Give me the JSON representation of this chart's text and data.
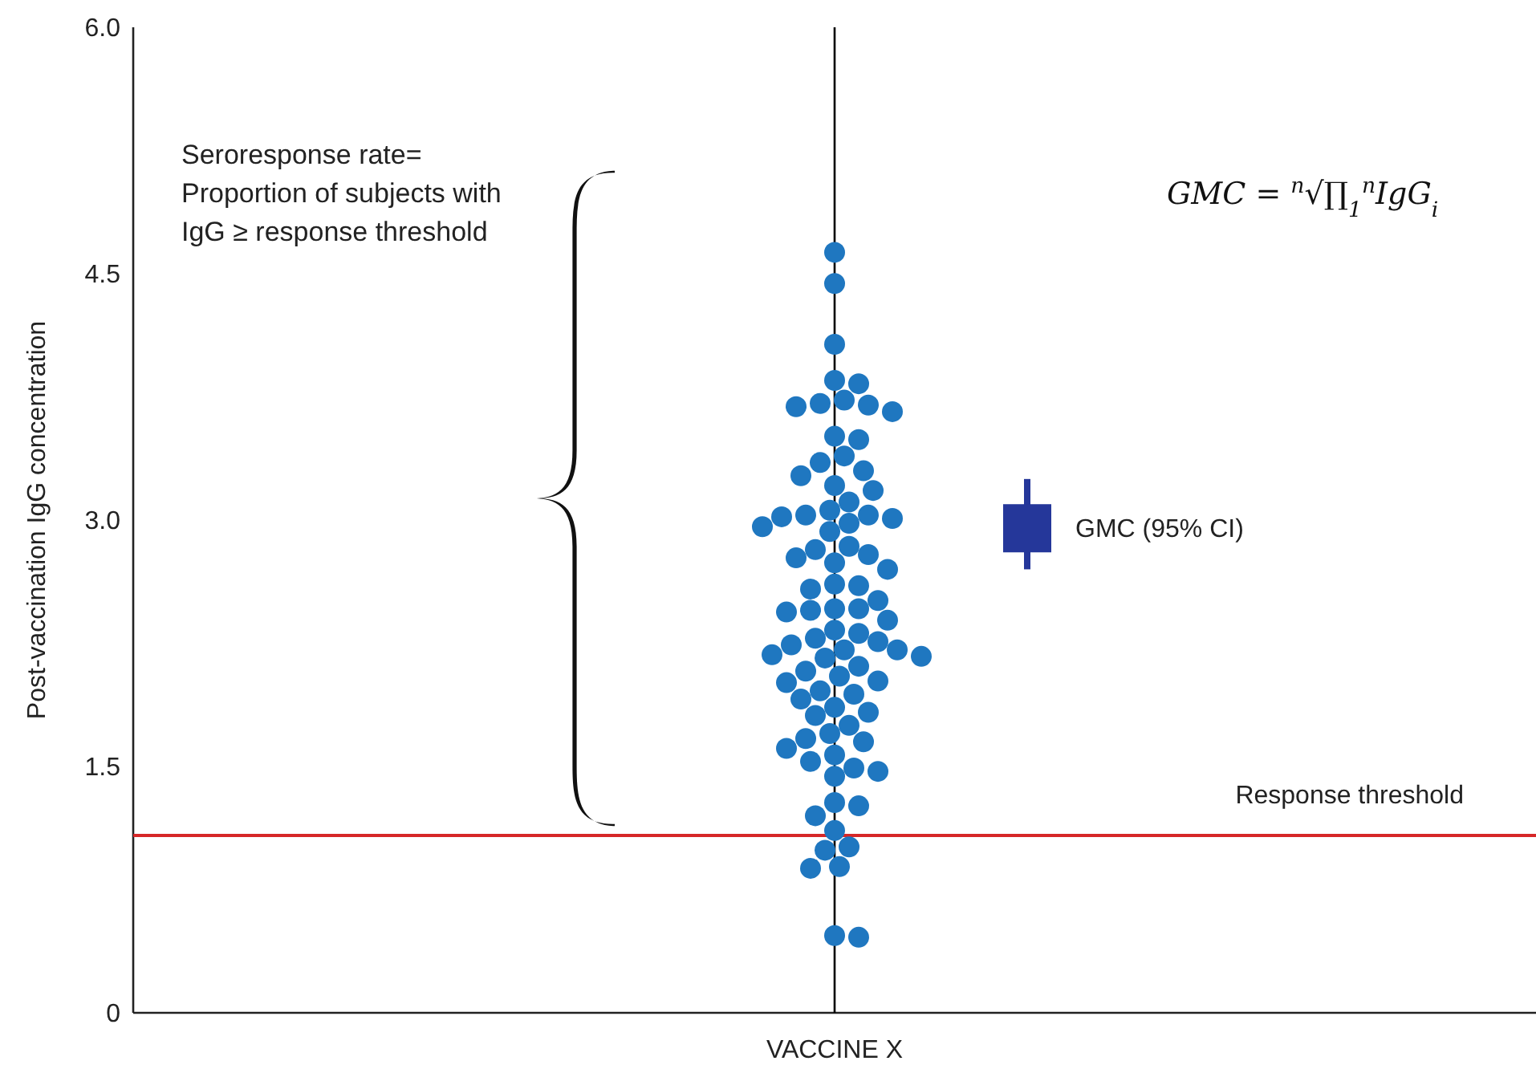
{
  "chart_data": {
    "type": "scatter",
    "ylabel": "Post-vaccination IgG concentration",
    "categories": [
      "VACCINE X"
    ],
    "ylim": [
      0,
      6
    ],
    "yticks": [
      {
        "value": 0,
        "label": "0"
      },
      {
        "value": 1.5,
        "label": "1.5"
      },
      {
        "value": 3,
        "label": "3.0"
      },
      {
        "value": 4.5,
        "label": "4.5"
      },
      {
        "value": 6,
        "label": "6.0"
      }
    ],
    "grid": false,
    "series": [
      {
        "color": "#1f77c0",
        "marker": "circle",
        "x": [
          "VACCINE X",
          "VACCINE X",
          "VACCINE X",
          "VACCINE X",
          "VACCINE X",
          "VACCINE X",
          "VACCINE X",
          "VACCINE X",
          "VACCINE X",
          "VACCINE X",
          "VACCINE X",
          "VACCINE X",
          "VACCINE X",
          "VACCINE X",
          "VACCINE X",
          "VACCINE X",
          "VACCINE X",
          "VACCINE X",
          "VACCINE X",
          "VACCINE X",
          "VACCINE X",
          "VACCINE X",
          "VACCINE X",
          "VACCINE X",
          "VACCINE X",
          "VACCINE X",
          "VACCINE X",
          "VACCINE X",
          "VACCINE X",
          "VACCINE X",
          "VACCINE X",
          "VACCINE X",
          "VACCINE X",
          "VACCINE X",
          "VACCINE X",
          "VACCINE X",
          "VACCINE X",
          "VACCINE X",
          "VACCINE X",
          "VACCINE X",
          "VACCINE X",
          "VACCINE X",
          "VACCINE X",
          "VACCINE X",
          "VACCINE X",
          "VACCINE X",
          "VACCINE X",
          "VACCINE X",
          "VACCINE X",
          "VACCINE X",
          "VACCINE X",
          "VACCINE X",
          "VACCINE X",
          "VACCINE X",
          "VACCINE X",
          "VACCINE X",
          "VACCINE X",
          "VACCINE X",
          "VACCINE X",
          "VACCINE X",
          "VACCINE X",
          "VACCINE X",
          "VACCINE X",
          "VACCINE X",
          "VACCINE X",
          "VACCINE X",
          "VACCINE X",
          "VACCINE X",
          "VACCINE X",
          "VACCINE X",
          "VACCINE X",
          "VACCINE X",
          "VACCINE X",
          "VACCINE X",
          "VACCINE X",
          "VACCINE X",
          "VACCINE X",
          "VACCINE X",
          "VACCINE X",
          "VACCINE X",
          "VACCINE X",
          "VACCINE X",
          "VACCINE X"
        ],
        "values": [
          4.63,
          4.44,
          4.07,
          3.85,
          3.83,
          3.71,
          3.73,
          3.69,
          3.7,
          3.66,
          3.49,
          3.51,
          3.39,
          3.35,
          3.27,
          3.21,
          3.18,
          3.02,
          3.03,
          3.11,
          3.01,
          3.03,
          3.06,
          2.98,
          2.93,
          2.84,
          2.96,
          2.77,
          2.7,
          2.79,
          2.82,
          2.6,
          2.39,
          2.44,
          2.33,
          2.51,
          2.46,
          2.46,
          2.61,
          2.21,
          2.17,
          2.08,
          2.31,
          2.26,
          2.24,
          2.58,
          2.16,
          2.21,
          2.01,
          2.02,
          2.05,
          1.94,
          1.91,
          2.28,
          1.86,
          1.83,
          1.75,
          1.7,
          1.61,
          1.49,
          1.53,
          1.44,
          1.65,
          1.26,
          1.2,
          1.47,
          1.28,
          0.89,
          0.99,
          1.01,
          0.46,
          0.47,
          0.88,
          1.11,
          1.67,
          1.57,
          1.81,
          1.96,
          2.11,
          2.45,
          2.18,
          2.74,
          3.3
        ]
      },
      {
        "name": "GMC (95% CI)",
        "color": "#25379a",
        "marker": "square",
        "x": [
          "VACCINE X"
        ],
        "values": [
          2.95
        ],
        "errors": [
          [
            2.7,
            3.25
          ]
        ]
      }
    ],
    "ref_lines": [
      {
        "axis": "x",
        "value": "VACCINE X",
        "color": "#000000"
      },
      {
        "axis": "y",
        "value": 1.08,
        "label": "Response threshold",
        "color": "#d62728"
      }
    ],
    "annotations": [
      "Seroresponse rate=\nProportion of subjects with\nIgG ≥ response threshold",
      "GMC = $^{n}$√∏$_{1}$$^{n}$IgG$_{i}$"
    ]
  }
}
